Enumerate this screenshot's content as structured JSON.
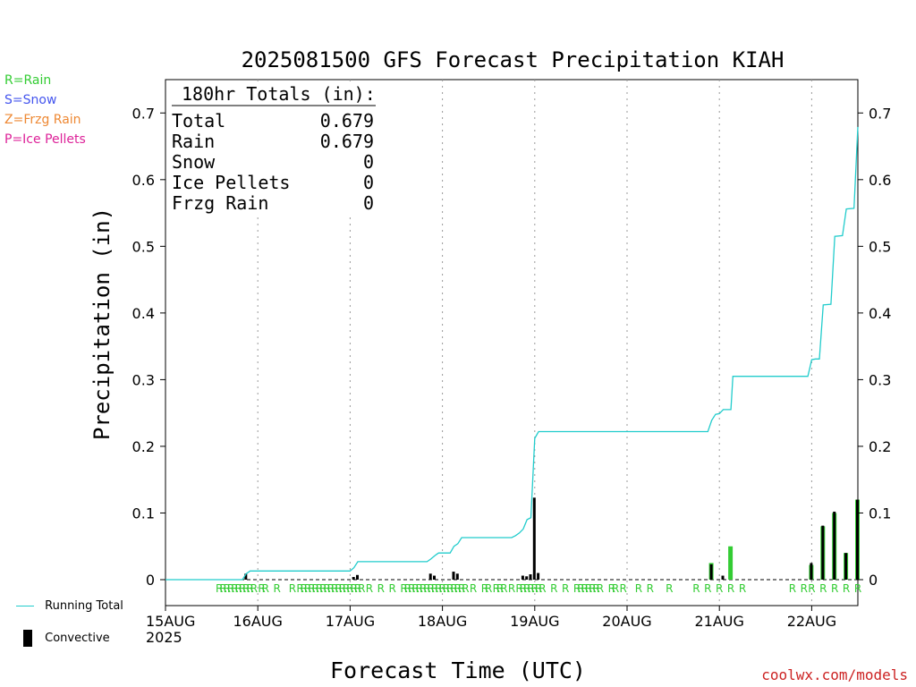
{
  "chart_data": {
    "type": "bar",
    "title": "2025081500 GFS Forecast Precipitation KIAH",
    "xlabel": "Forecast Time (UTC)",
    "ylabel": "Precipitation (in)",
    "ylim": [
      0,
      0.75
    ],
    "y_ticks": [
      0,
      0.1,
      0.2,
      0.3,
      0.4,
      0.5,
      0.6,
      0.7
    ],
    "y_tick_labels": [
      "0",
      "0.1",
      "0.2",
      "0.3",
      "0.4",
      "0.5",
      "0.6",
      "0.7"
    ],
    "x_axis": {
      "start": "15AUG 00Z",
      "end_hour": 180,
      "tick_hours": [
        0,
        24,
        48,
        72,
        96,
        120,
        144,
        168
      ],
      "tick_labels": [
        "15AUG",
        "16AUG",
        "17AUG",
        "18AUG",
        "19AUG",
        "20AUG",
        "21AUG",
        "22AUG"
      ],
      "start_year": "2025"
    },
    "type_legend": [
      {
        "code": "R",
        "text": "R=Rain",
        "color": "#33cc33"
      },
      {
        "code": "S",
        "text": "S=Snow",
        "color": "#4455ee"
      },
      {
        "code": "Z",
        "text": "Z=Frzg Rain",
        "color": "#ee8833"
      },
      {
        "code": "P",
        "text": "P=Ice Pellets",
        "color": "#dd2299"
      }
    ],
    "totals_box": {
      "header": "180hr Totals (in):",
      "rows": [
        {
          "label": "Total",
          "value": "0.679"
        },
        {
          "label": "Rain",
          "value": "0.679"
        },
        {
          "label": "Snow",
          "value": "0"
        },
        {
          "label": "Ice Pellets",
          "value": "0"
        },
        {
          "label": "Frzg Rain",
          "value": "0"
        }
      ]
    },
    "series": [
      {
        "name": "Running Total",
        "type": "line",
        "color": "#22cccc",
        "points": [
          [
            0,
            0
          ],
          [
            20,
            0
          ],
          [
            21,
            0.009
          ],
          [
            22,
            0.013
          ],
          [
            48,
            0.013
          ],
          [
            49,
            0.018
          ],
          [
            50,
            0.027
          ],
          [
            68,
            0.027
          ],
          [
            69,
            0.031
          ],
          [
            70,
            0.036
          ],
          [
            70.5,
            0.038
          ],
          [
            71,
            0.04
          ],
          [
            74,
            0.04
          ],
          [
            75,
            0.05
          ],
          [
            76,
            0.054
          ],
          [
            77,
            0.063
          ],
          [
            90,
            0.063
          ],
          [
            91,
            0.066
          ],
          [
            92,
            0.07
          ],
          [
            93,
            0.076
          ],
          [
            94,
            0.09
          ],
          [
            95,
            0.093
          ],
          [
            96,
            0.212
          ],
          [
            97,
            0.222
          ],
          [
            141,
            0.222
          ],
          [
            142,
            0.239
          ],
          [
            143,
            0.248
          ],
          [
            144,
            0.249
          ],
          [
            145,
            0.255
          ],
          [
            147,
            0.255
          ],
          [
            147.5,
            0.305
          ],
          [
            167,
            0.305
          ],
          [
            168,
            0.33
          ],
          [
            169,
            0.331
          ],
          [
            170,
            0.331
          ],
          [
            171,
            0.412
          ],
          [
            173,
            0.413
          ],
          [
            174,
            0.515
          ],
          [
            176,
            0.516
          ],
          [
            177,
            0.556
          ],
          [
            179,
            0.557
          ],
          [
            180,
            0.679
          ]
        ]
      },
      {
        "name": "Convective",
        "type": "bar",
        "color": "#000000",
        "points": [
          [
            21,
            0.009
          ],
          [
            49,
            0.004
          ],
          [
            50,
            0.007
          ],
          [
            69,
            0.009
          ],
          [
            70,
            0.006
          ],
          [
            75,
            0.012
          ],
          [
            76,
            0.009
          ],
          [
            93,
            0.006
          ],
          [
            94,
            0.005
          ],
          [
            95,
            0.008
          ],
          [
            96,
            0.123
          ],
          [
            97,
            0.01
          ],
          [
            142,
            0.023
          ],
          [
            145,
            0.006
          ],
          [
            168,
            0.025
          ],
          [
            171,
            0.081
          ],
          [
            174,
            0.102
          ],
          [
            177,
            0.04
          ],
          [
            180,
            0.12
          ]
        ]
      },
      {
        "name": "Rain",
        "type": "bar",
        "color": "#33cc33",
        "points": [
          [
            142,
            0.025
          ],
          [
            147,
            0.05
          ],
          [
            168,
            0.022
          ],
          [
            171,
            0.08
          ],
          [
            174,
            0.1
          ],
          [
            177,
            0.04
          ],
          [
            180,
            0.12
          ]
        ]
      }
    ],
    "rain_marker_hours": [
      14,
      15,
      16,
      17,
      18,
      19,
      20,
      21,
      22,
      23,
      25,
      26,
      29,
      33,
      35,
      36,
      37,
      38,
      39,
      40,
      41,
      42,
      43,
      44,
      45,
      46,
      47,
      48,
      49,
      50,
      51,
      53,
      56,
      59,
      62,
      63,
      64,
      65,
      66,
      67,
      68,
      69,
      70,
      71,
      72,
      73,
      74,
      75,
      76,
      77,
      78,
      80,
      83,
      84,
      86,
      87,
      88,
      90,
      92,
      93,
      94,
      95,
      96,
      97,
      98,
      101,
      104,
      107,
      108,
      109,
      110,
      111,
      112,
      113,
      116,
      117,
      119,
      123,
      126,
      131,
      138,
      141,
      144,
      147,
      150,
      163,
      166,
      168,
      171,
      174,
      177,
      180
    ]
  },
  "legend_bottom": {
    "running_total_label": "Running Total",
    "convective_label": "Convective"
  },
  "watermark": "coolwx.com/models"
}
